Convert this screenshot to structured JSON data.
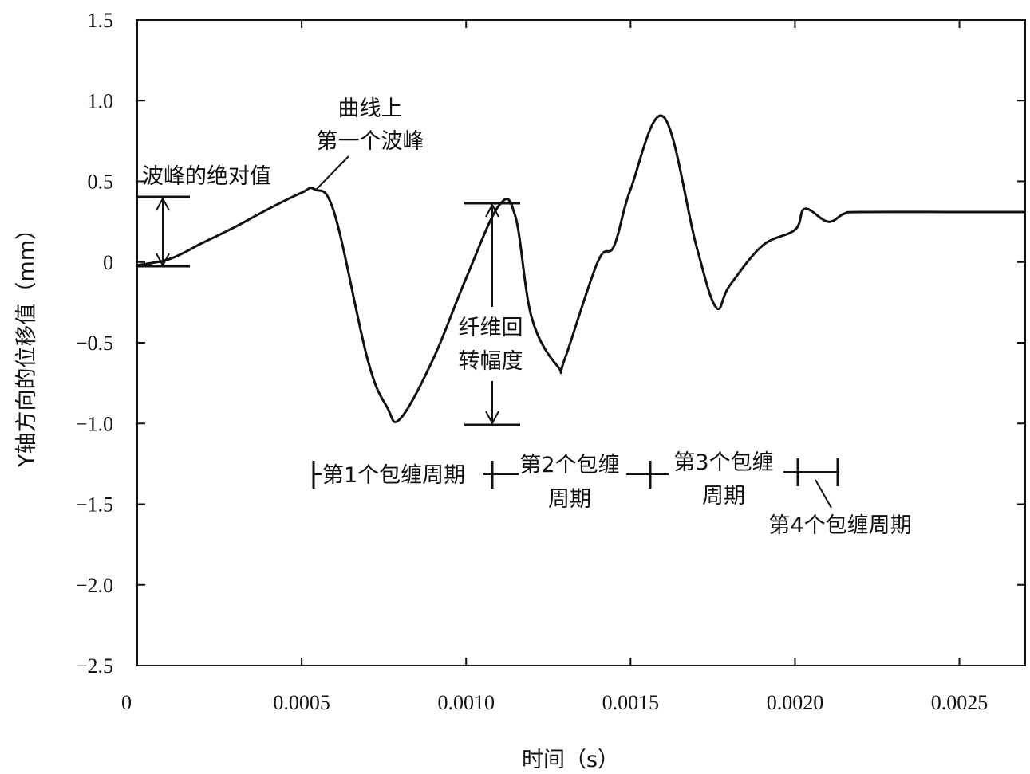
{
  "chart_data": {
    "type": "line",
    "xlabel": "时间（s）",
    "ylabel": "Y轴方向的位移值（mm）",
    "xlim": [
      0,
      0.0027
    ],
    "ylim": [
      -2.5,
      1.5
    ],
    "x_ticks": [
      0,
      0.0005,
      0.001,
      0.0015,
      0.002,
      0.0025
    ],
    "x_tick_labels": [
      "0",
      "0.0005",
      "0.0010",
      "0.0015",
      "0.0020",
      "0.0025"
    ],
    "y_ticks": [
      1.5,
      1.0,
      0.5,
      0,
      -0.5,
      -1.0,
      -1.5,
      -2.0,
      -2.5
    ],
    "y_tick_labels": [
      "1.5",
      "1.0",
      "0.5",
      "0",
      "−0.5",
      "−1.0",
      "−1.5",
      "−2.0",
      "−2.5"
    ],
    "grid": false,
    "series": [
      {
        "x": [
          0,
          0.0001,
          0.0002,
          0.0003,
          0.0004,
          0.0005,
          0.00054,
          0.0006,
          0.0007,
          0.00076,
          0.0008,
          0.0009,
          0.001,
          0.0011,
          0.00115,
          0.0012,
          0.00128,
          0.0013,
          0.0014,
          0.00145,
          0.0015,
          0.0016,
          0.0017,
          0.00176,
          0.0018,
          0.0019,
          0.002,
          0.00203,
          0.0021,
          0.00215,
          0.0022,
          0.0025,
          0.0027
        ],
        "y": [
          -0.02,
          0.02,
          0.12,
          0.22,
          0.33,
          0.43,
          0.45,
          0.3,
          -0.6,
          -0.9,
          -0.97,
          -0.6,
          -0.1,
          0.35,
          0.28,
          -0.35,
          -0.65,
          -0.6,
          0.0,
          0.1,
          0.45,
          0.9,
          0.1,
          -0.28,
          -0.15,
          0.1,
          0.2,
          0.33,
          0.25,
          0.3,
          0.31,
          0.31,
          0.31
        ]
      }
    ],
    "annotations": {
      "first_peak_line1": "曲线上",
      "first_peak_line2": "第一个波峰",
      "peak_abs": "波峰的绝对值",
      "amplitude_line1": "纤维回",
      "amplitude_line2": "转幅度",
      "cycle1": "第1个包缠周期",
      "cycle2_line1": "第2个包缠",
      "cycle2_line2": "周期",
      "cycle3_line1": "第3个包缠",
      "cycle3_line2": "周期",
      "cycle4": "第4个包缠周期"
    }
  }
}
